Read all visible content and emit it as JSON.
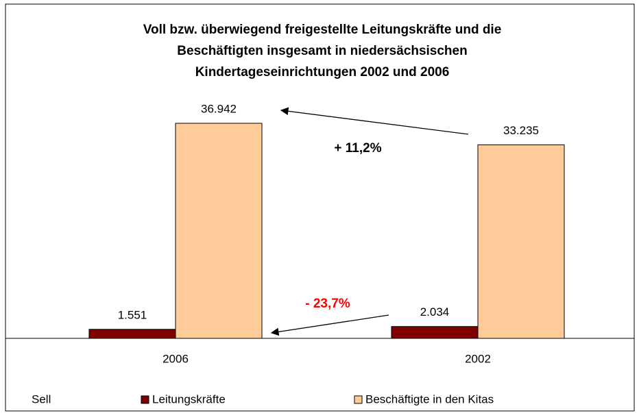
{
  "chart_data": {
    "type": "bar",
    "title": [
      "Voll bzw. überwiegend freigestellte Leitungskräfte und die",
      "Beschäftigten insgesamt in niedersächsischen",
      "Kindertageseinrichtungen 2002 und 2006"
    ],
    "categories": [
      "2006",
      "2002"
    ],
    "series": [
      {
        "name": "Leitungskräfte",
        "color": "#800000",
        "values": [
          1551,
          2034
        ],
        "value_labels": [
          "1.551",
          "2.034"
        ]
      },
      {
        "name": "Beschäftigte in den Kitas",
        "color": "#ffcc99",
        "values": [
          36942,
          33235
        ],
        "value_labels": [
          "36.942",
          "33.235"
        ]
      }
    ],
    "ylim": [
      0,
      40000
    ],
    "annotations": [
      {
        "text": "+ 11,2%",
        "color": "#000000"
      },
      {
        "text": "- 23,7%",
        "color": "#ff0000"
      }
    ],
    "source": "Sell"
  }
}
